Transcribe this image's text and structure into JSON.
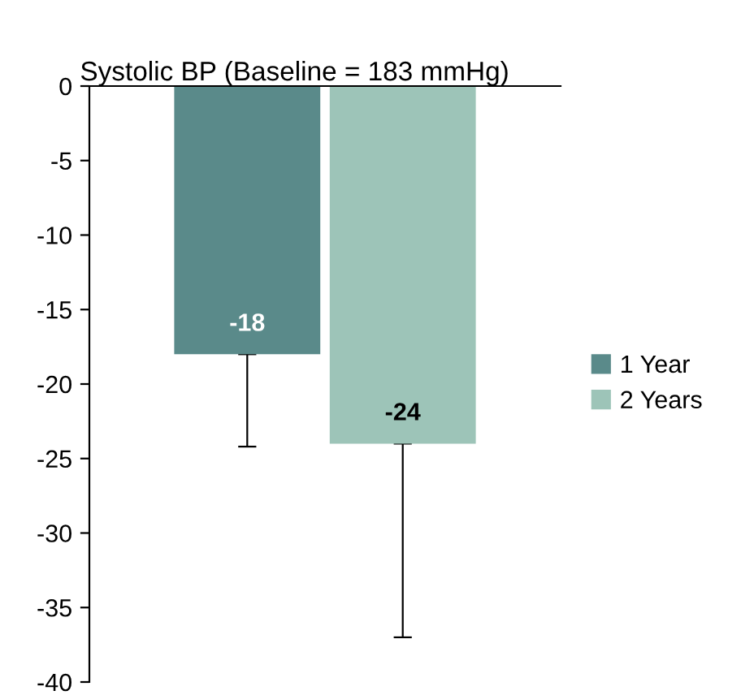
{
  "chart_data": {
    "type": "bar",
    "title": "Systolic BP (Baseline = 183 mmHg)",
    "categories": [
      null
    ],
    "series": [
      {
        "name": "1 Year",
        "color": "#5a8a8a",
        "values": [
          -18
        ],
        "errors": [
          [
            -24.2,
            -18
          ]
        ],
        "value_labels": [
          "-18"
        ]
      },
      {
        "name": "2 Years",
        "color": "#9dc4b8",
        "values": [
          -24
        ],
        "errors": [
          [
            -37,
            -24
          ]
        ],
        "value_labels": [
          "-24"
        ]
      }
    ],
    "ylim": [
      -40,
      0
    ],
    "yticks": [
      0,
      -5,
      -10,
      -15,
      -20,
      -25,
      -30,
      -35,
      -40
    ],
    "legend": "right",
    "tick_labels": "y",
    "grid": false
  }
}
